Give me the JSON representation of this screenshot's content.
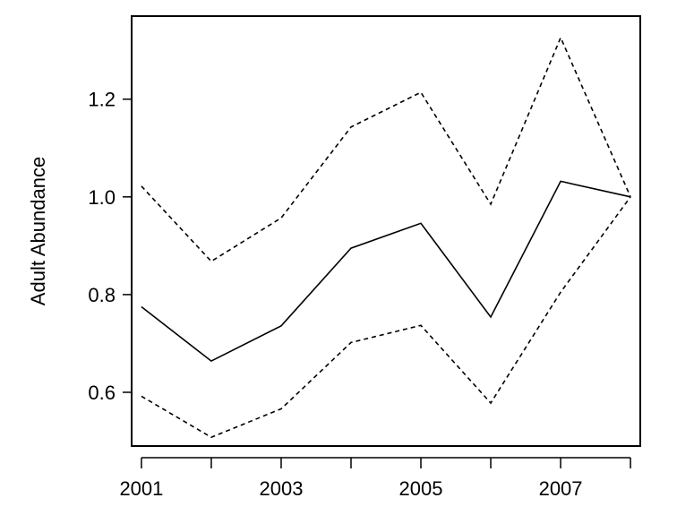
{
  "chart_data": {
    "type": "line",
    "title": "",
    "xlabel": "",
    "ylabel": "Adult Abundance",
    "x": [
      2001,
      2002,
      2003,
      2004,
      2005,
      2006,
      2007,
      2008
    ],
    "xlim": [
      2000.86,
      2008.14
    ],
    "ylim": [
      0.49,
      1.37
    ],
    "x_ticks": [
      2001,
      2002,
      2003,
      2004,
      2005,
      2006,
      2007,
      2008
    ],
    "x_tick_labels": [
      "2001",
      "",
      "2003",
      "",
      "2005",
      "",
      "2007",
      ""
    ],
    "y_ticks": [
      0.6,
      0.8,
      1.0,
      1.2
    ],
    "y_tick_labels": [
      "0.6",
      "0.8",
      "1.0",
      "1.2"
    ],
    "grid": false,
    "legend": "none",
    "series": [
      {
        "style": "solid",
        "values": [
          0.775,
          0.664,
          0.736,
          0.895,
          0.946,
          0.754,
          1.032,
          1.0
        ]
      },
      {
        "style": "dashed",
        "values": [
          1.022,
          0.868,
          0.957,
          1.143,
          1.214,
          0.985,
          1.326,
          1.0
        ]
      },
      {
        "style": "dashed",
        "values": [
          0.592,
          0.508,
          0.566,
          0.702,
          0.737,
          0.578,
          0.805,
          1.0
        ]
      }
    ]
  }
}
